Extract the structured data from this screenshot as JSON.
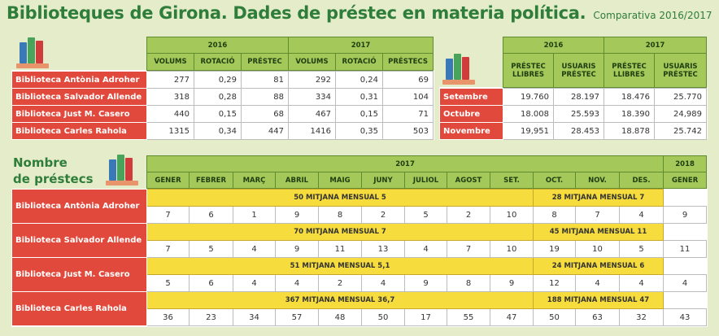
{
  "header": {
    "title": "Biblioteques de Girona. Dades de préstec en materia política.",
    "subtitle": "Comparativa 2016/2017"
  },
  "section_label": {
    "line1": "Nombre",
    "line2": "de préstecs"
  },
  "colors": {
    "green_header": "#a4c85a",
    "red_label": "#e0493b",
    "yellow_band": "#f6dc3c",
    "background": "#e4ecc9",
    "title_green": "#2e7d3a"
  },
  "icons": [
    "books-icon"
  ],
  "libraries": [
    "Biblioteca Antònia Adroher",
    "Biblioteca Salvador Allende",
    "Biblioteca Just M. Casero",
    "Biblioteca Carles Rahola"
  ],
  "table1": {
    "years": [
      "2016",
      "2017"
    ],
    "columns": [
      "VOLUMS",
      "ROTACIÓ",
      "PRÉSTEC",
      "VOLUMS",
      "ROTACIÓ",
      "PRÉSTECS"
    ],
    "rows": [
      [
        "277",
        "0,29",
        "81",
        "292",
        "0,24",
        "69"
      ],
      [
        "318",
        "0,28",
        "88",
        "334",
        "0,31",
        "104"
      ],
      [
        "440",
        "0,15",
        "68",
        "467",
        "0,15",
        "71"
      ],
      [
        "1315",
        "0,34",
        "447",
        "1416",
        "0,35",
        "503"
      ]
    ]
  },
  "table2": {
    "years": [
      "2016",
      "2017"
    ],
    "columns": [
      [
        "PRÉSTEC",
        "LLIBRES"
      ],
      [
        "USUARIS",
        "PRÉSTEC"
      ],
      [
        "PRÉSTEC",
        "LLIBRES"
      ],
      [
        "USUARIS",
        "PRÉSTEC"
      ]
    ],
    "months": [
      "Setembre",
      "Octubre",
      "Novembre"
    ],
    "rows": [
      [
        "19.760",
        "28.197",
        "18.476",
        "25.770"
      ],
      [
        "18.008",
        "25.593",
        "18.390",
        "24,989"
      ],
      [
        "19,951",
        "28.453",
        "18.878",
        "25.742"
      ]
    ]
  },
  "table3": {
    "year_main": "2017",
    "year_next": "2018",
    "months": [
      "GENER",
      "FEBRER",
      "MARÇ",
      "ABRIL",
      "MAIG",
      "JUNY",
      "JULIOL",
      "AGOST",
      "SET.",
      "OCT.",
      "NOV.",
      "DES.",
      "GENER"
    ],
    "bands": [
      [
        "50 MITJANA MENSUAL 5",
        "28 MITJANA MENSUAL 7"
      ],
      [
        "70 MITJANA MENSUAL 7",
        "45 MITJANA MENSUAL 11"
      ],
      [
        "51 MITJANA MENSUAL 5,1",
        "24 MITJANA MENSUAL 6"
      ],
      [
        "367 MITJANA MENSUAL 36,7",
        "188 MITJANA MENSUAL 47"
      ]
    ],
    "rows": [
      [
        "7",
        "6",
        "1",
        "9",
        "8",
        "2",
        "5",
        "2",
        "10",
        "8",
        "7",
        "4",
        "9"
      ],
      [
        "7",
        "5",
        "4",
        "9",
        "11",
        "13",
        "4",
        "7",
        "10",
        "19",
        "10",
        "5",
        "11"
      ],
      [
        "5",
        "6",
        "4",
        "4",
        "2",
        "4",
        "9",
        "8",
        "9",
        "12",
        "4",
        "4",
        "4"
      ],
      [
        "36",
        "23",
        "34",
        "57",
        "48",
        "50",
        "17",
        "55",
        "47",
        "50",
        "63",
        "32",
        "43"
      ]
    ]
  }
}
